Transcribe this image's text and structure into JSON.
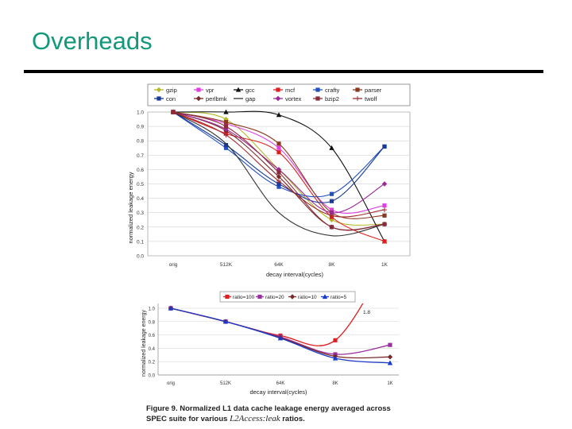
{
  "slide": {
    "title": "Overheads"
  },
  "caption": {
    "prefix": "Figure 9. Normalized L1 data cache leakage energy averaged across SPEC suite for various ",
    "ratio_term": "L2Access:leak",
    "suffix": " ratios."
  },
  "colors": {
    "gzip": "#b5b82a",
    "vpr": "#e040e0",
    "gcc": "#111111",
    "mcf": "#e02020",
    "crafty": "#2050c0",
    "parser": "#8a3a20",
    "con": "#1a3a9a",
    "perlbmk": "#7a2a2a",
    "gap": "#333333",
    "vortex": "#9a2a9a",
    "bzip2": "#8a2a3a",
    "twolf": "#a02a30"
  },
  "chart_data": [
    {
      "type": "line",
      "ylabel": "normalized leakage energy",
      "xlabel": "decay interval(cycles)",
      "categories": [
        "orig",
        "512K",
        "64K",
        "8K",
        "1K"
      ],
      "yticks": [
        "0.0",
        "0.1",
        "0.2",
        "0.3",
        "0.4",
        "0.5",
        "0.6",
        "0.7",
        "0.8",
        "0.9",
        "1.0"
      ],
      "ylim": [
        0,
        1.0
      ],
      "legend_position": "top",
      "series": [
        {
          "name": "gzip",
          "values": [
            1.0,
            0.95,
            0.6,
            0.25,
            0.22
          ],
          "color_key": "gzip",
          "marker": "diamond"
        },
        {
          "name": "vpr",
          "values": [
            1.0,
            0.92,
            0.75,
            0.32,
            0.35
          ],
          "color_key": "vpr",
          "marker": "square"
        },
        {
          "name": "gcc",
          "values": [
            1.0,
            1.0,
            0.98,
            0.75,
            0.1
          ],
          "color_key": "gcc",
          "marker": "triangle"
        },
        {
          "name": "mcf",
          "values": [
            1.0,
            0.85,
            0.72,
            0.27,
            0.1
          ],
          "color_key": "mcf",
          "marker": "square"
        },
        {
          "name": "crafty",
          "values": [
            1.0,
            0.75,
            0.48,
            0.43,
            0.76
          ],
          "color_key": "crafty",
          "marker": "square"
        },
        {
          "name": "parser",
          "values": [
            1.0,
            0.93,
            0.78,
            0.3,
            0.28
          ],
          "color_key": "parser",
          "marker": "square"
        },
        {
          "name": "con",
          "values": [
            1.0,
            0.77,
            0.5,
            0.38,
            0.76
          ],
          "color_key": "con",
          "marker": "square"
        },
        {
          "name": "perlbmk",
          "values": [
            1.0,
            0.87,
            0.55,
            0.2,
            0.22
          ],
          "color_key": "perlbmk",
          "marker": "diamond"
        },
        {
          "name": "gap",
          "values": [
            1.0,
            0.78,
            0.3,
            0.14,
            0.22
          ],
          "color_key": "gap",
          "marker": "none"
        },
        {
          "name": "vortex",
          "values": [
            1.0,
            0.88,
            0.6,
            0.3,
            0.5
          ],
          "color_key": "vortex",
          "marker": "diamond"
        },
        {
          "name": "bzip2",
          "values": [
            1.0,
            0.9,
            0.58,
            0.2,
            0.22
          ],
          "color_key": "bzip2",
          "marker": "square"
        },
        {
          "name": "twolf",
          "values": [
            1.0,
            0.84,
            0.52,
            0.28,
            0.32
          ],
          "color_key": "twolf",
          "marker": "star"
        }
      ]
    },
    {
      "type": "line",
      "ylabel": "normalized leakage energy",
      "xlabel": "decay interval(cycles)",
      "categories": [
        "orig",
        "512K",
        "64K",
        "8K",
        "1K"
      ],
      "yticks": [
        "0.0",
        "0.2",
        "0.4",
        "0.6",
        "0.8",
        "1.0"
      ],
      "ylim": [
        0,
        1.0
      ],
      "legend_position": "top",
      "annotation": "1.8",
      "series": [
        {
          "name": "ratio=100",
          "values": [
            1.0,
            0.8,
            0.59,
            0.52,
            1.8
          ],
          "color": "#e02020",
          "marker": "square"
        },
        {
          "name": "ratio=20",
          "values": [
            1.0,
            0.8,
            0.57,
            0.31,
            0.45
          ],
          "color": "#9a30a0",
          "marker": "square"
        },
        {
          "name": "ratio=10",
          "values": [
            1.0,
            0.8,
            0.56,
            0.28,
            0.27
          ],
          "color": "#7a2a2a",
          "marker": "diamond"
        },
        {
          "name": "ratio=5",
          "values": [
            1.0,
            0.8,
            0.55,
            0.25,
            0.18
          ],
          "color": "#1a3ac8",
          "marker": "triangle"
        }
      ]
    }
  ]
}
